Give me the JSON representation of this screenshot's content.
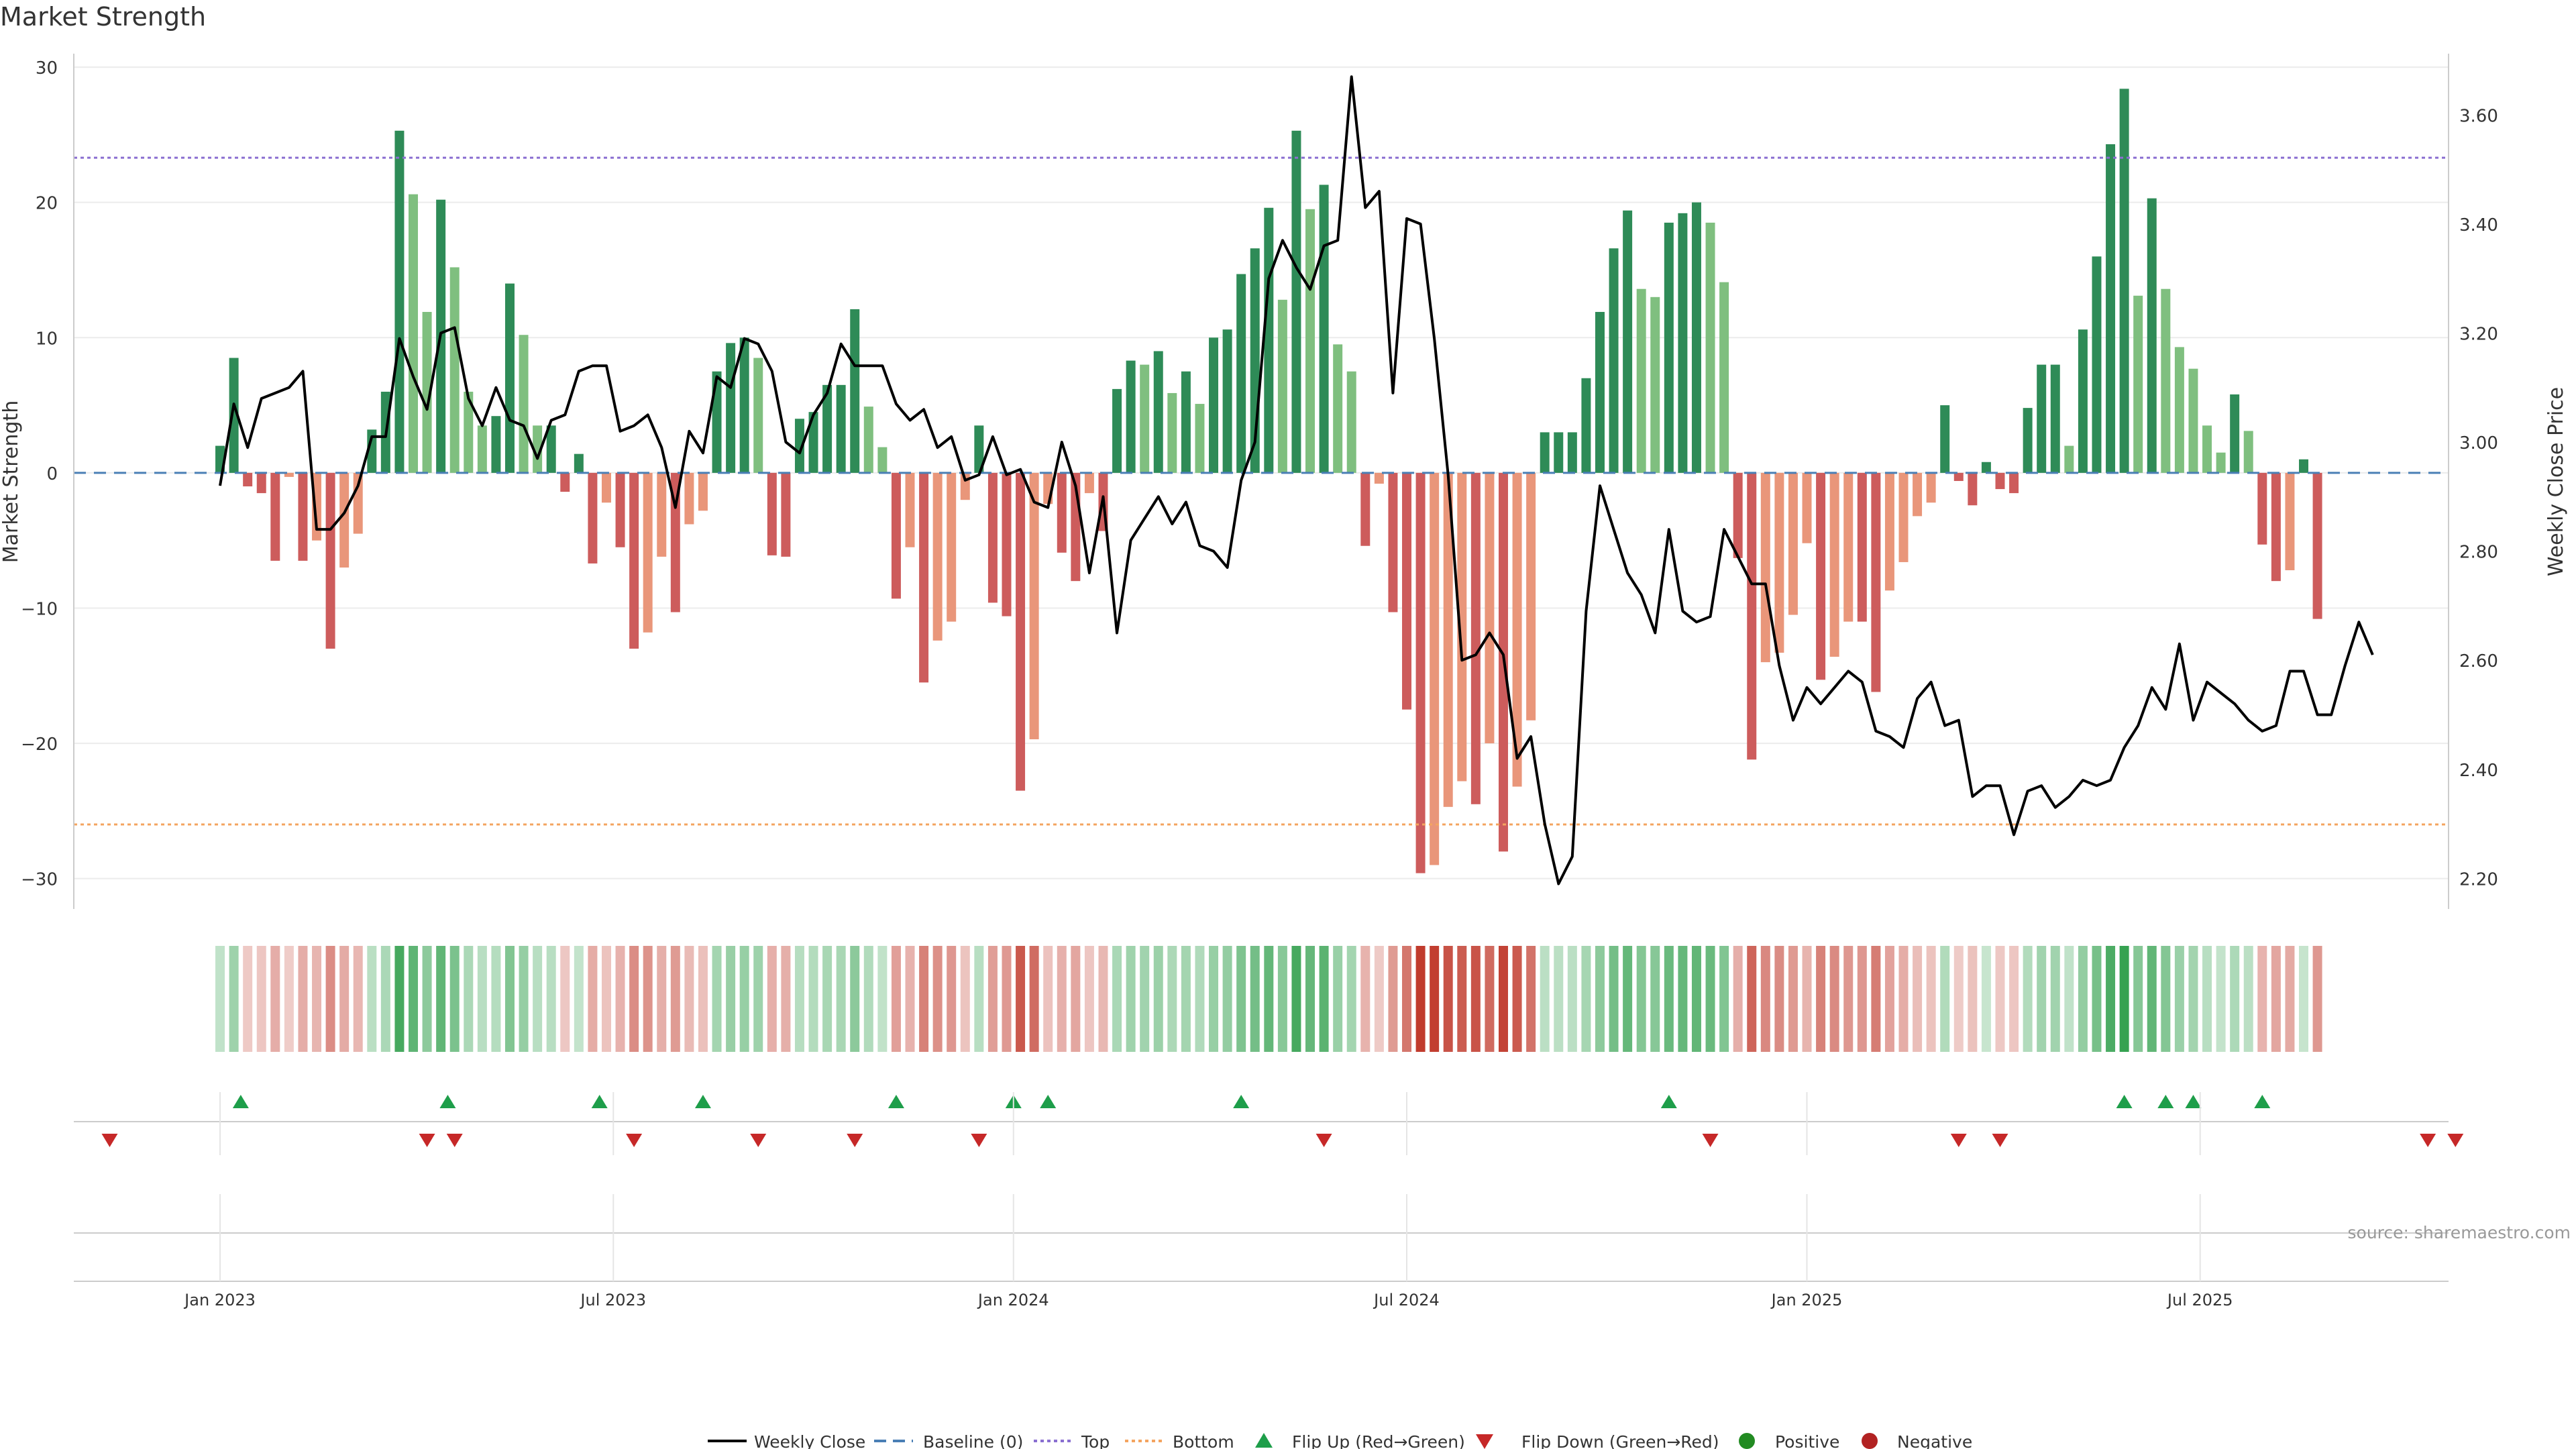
{
  "title": "Market Strength",
  "chart_data": {
    "type": "bar+line",
    "title": "Market Strength",
    "ylabel_left": "Market Strength",
    "ylabel_right": "Weekly Close Price",
    "ylim_left": [
      -32,
      30.5
    ],
    "ylim_right": [
      2.15,
      3.7
    ],
    "yticks_left": [
      30,
      20,
      10,
      0,
      -10,
      -20,
      -30
    ],
    "ytick_labels_left": [
      "30",
      "20",
      "10",
      "0",
      "−10",
      "−20",
      "−30"
    ],
    "yticks_right": [
      3.6,
      3.4,
      3.2,
      3.0,
      2.8,
      2.6,
      2.4,
      2.2
    ],
    "ytick_labels_right": [
      "3.60",
      "3.40",
      "3.20",
      "3.00",
      "2.80",
      "2.60",
      "2.40",
      "2.20"
    ],
    "top_line": 23.3,
    "bottom_line": -26,
    "x_start_week": -10.6,
    "x_end_week": 161.5,
    "xticks": [
      {
        "label": "Jan 2023",
        "week": 0
      },
      {
        "label": "Jul 2023",
        "week": 28.5
      },
      {
        "label": "Jan 2024",
        "week": 57.5
      },
      {
        "label": "Jul 2024",
        "week": 86
      },
      {
        "label": "Jan 2025",
        "week": 115
      },
      {
        "label": "Jul 2025",
        "week": 143.5
      }
    ],
    "strength": [
      2,
      8.5,
      -1,
      -1.5,
      -6.5,
      -0.3,
      -6.5,
      -5,
      -13,
      -7,
      -4.5,
      3.2,
      6,
      25.3,
      20.6,
      11.9,
      20.2,
      15.2,
      6,
      3.5,
      4.2,
      14,
      10.2,
      3.5,
      3.5,
      -1.4,
      1.4,
      -6.7,
      -2.2,
      -5.5,
      -13,
      -11.8,
      -6.2,
      -10.3,
      -3.8,
      -2.8,
      7.5,
      9.6,
      10,
      8.5,
      -6.1,
      -6.2,
      4,
      4.5,
      6.5,
      6.5,
      12.1,
      4.9,
      1.9,
      -9.3,
      -5.5,
      -15.5,
      -12.4,
      -11,
      -2,
      3.5,
      -9.6,
      -10.6,
      -23.5,
      -19.7,
      -2.3,
      -5.9,
      -8,
      -1.5,
      -4.3,
      6.2,
      8.3,
      8,
      9,
      5.9,
      7.5,
      5.1,
      10,
      10.6,
      14.7,
      16.6,
      19.6,
      12.8,
      25.3,
      19.5,
      21.3,
      9.5,
      7.5,
      -5.4,
      -0.8,
      -10.3,
      -17.5,
      -29.6,
      -29,
      -24.7,
      -22.8,
      -24.5,
      -20,
      -28,
      -23.2,
      -18.3,
      3,
      3,
      3,
      7,
      11.9,
      16.6,
      19.4,
      13.6,
      13,
      18.5,
      19.2,
      20,
      18.5,
      14.1,
      -6.3,
      -21.2,
      -14,
      -13.3,
      -10.5,
      -5.2,
      -15.3,
      -13.6,
      -11,
      -11,
      -16.2,
      -8.7,
      -6.6,
      -3.2,
      -2.2,
      5,
      -0.6,
      -2.4,
      0.8,
      -1.2,
      -1.5,
      4.8,
      8,
      8,
      2,
      10.6,
      16,
      24.3,
      28.4,
      13.1,
      20.3,
      13.6,
      9.3,
      7.7,
      3.5,
      1.5,
      5.8,
      3.1,
      -5.3,
      -8,
      -7.2,
      1,
      -10.8
    ],
    "close": [
      2.92,
      3.07,
      2.99,
      3.08,
      3.09,
      3.1,
      3.13,
      2.84,
      2.84,
      2.87,
      2.92,
      3.01,
      3.01,
      3.19,
      3.12,
      3.06,
      3.2,
      3.21,
      3.08,
      3.03,
      3.1,
      3.04,
      3.03,
      2.97,
      3.04,
      3.05,
      3.13,
      3.14,
      3.14,
      3.02,
      3.03,
      3.05,
      2.99,
      2.88,
      3.02,
      2.98,
      3.12,
      3.1,
      3.19,
      3.18,
      3.13,
      3.0,
      2.98,
      3.05,
      3.09,
      3.18,
      3.14,
      3.14,
      3.14,
      3.07,
      3.04,
      3.06,
      2.99,
      3.01,
      2.93,
      2.94,
      3.01,
      2.94,
      2.95,
      2.89,
      2.88,
      3.0,
      2.92,
      2.76,
      2.9,
      2.65,
      2.82,
      2.86,
      2.9,
      2.85,
      2.89,
      2.81,
      2.8,
      2.77,
      2.93,
      3.0,
      3.3,
      3.37,
      3.32,
      3.28,
      3.36,
      3.37,
      3.67,
      3.43,
      3.46,
      3.09,
      3.41,
      3.4,
      3.19,
      2.94,
      2.6,
      2.61,
      2.65,
      2.61,
      2.42,
      2.46,
      2.3,
      2.19,
      2.24,
      2.69,
      2.92,
      2.84,
      2.76,
      2.72,
      2.65,
      2.84,
      2.69,
      2.67,
      2.68,
      2.84,
      2.79,
      2.74,
      2.74,
      2.59,
      2.49,
      2.55,
      2.52,
      2.55,
      2.58,
      2.56,
      2.47,
      2.46,
      2.44,
      2.53,
      2.56,
      2.48,
      2.49,
      2.35,
      2.37,
      2.37,
      2.28,
      2.36,
      2.37,
      2.33,
      2.35,
      2.38,
      2.37,
      2.38,
      2.44,
      2.48,
      2.55,
      2.51,
      2.63,
      2.49,
      2.56,
      2.54,
      2.52,
      2.49,
      2.47,
      2.48,
      2.58,
      2.58,
      2.5,
      2.5,
      2.59,
      2.67,
      2.61
    ],
    "flip_up_weeks": [
      1.5,
      16.5,
      27.5,
      35,
      49,
      57.5,
      60,
      74,
      105,
      138,
      141,
      143,
      148
    ],
    "flip_down_weeks": [
      -8,
      15,
      17,
      30,
      39,
      46,
      55,
      80,
      108,
      126,
      129,
      160,
      162
    ],
    "legend": {
      "weekly_close": "Weekly Close",
      "baseline": "Baseline (0)",
      "top": "Top",
      "bottom": "Bottom",
      "flip_up": "Flip Up (Red→Green)",
      "flip_down": "Flip Down (Green→Red)",
      "positive": "Positive",
      "negative": "Negative"
    },
    "legend_placement": "bottom-center",
    "source": "source: sharemaestro.com",
    "colors": {
      "pos_strong": "#2e8b57",
      "pos_weak": "#7fbf7f",
      "neg_strong": "#cd5c5c",
      "neg_weak": "#e9967a",
      "close_line": "#000000",
      "top_line": "#8a6fd1",
      "bottom_line": "#f4a460",
      "baseline": "#4a7fb5",
      "flip_up": "#1e9e4a",
      "flip_down": "#c62828",
      "positive_dot": "#228b22",
      "negative_dot": "#b22222",
      "grid": "#ececec",
      "axis": "#cccccc"
    }
  }
}
